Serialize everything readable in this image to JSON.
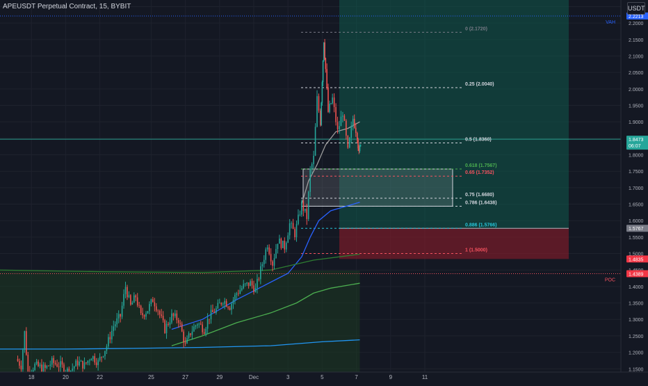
{
  "symbol_title": "APEUSDT Perpetual Contract, 15, BYBIT",
  "currency_button": "USDT",
  "chart_data": {
    "type": "candlestick",
    "ylim": [
      1.14,
      2.27
    ],
    "y_ticks": [
      "2.2500",
      "2.2000",
      "2.1500",
      "2.1000",
      "2.0500",
      "2.0000",
      "1.9500",
      "1.9000",
      "1.8500",
      "1.8000",
      "1.7500",
      "1.7000",
      "1.6500",
      "1.6000",
      "1.5500",
      "1.5000",
      "1.4500",
      "1.4000",
      "1.3500",
      "1.3000",
      "1.2500",
      "1.2000",
      "1.1500"
    ],
    "x_ticks": [
      {
        "label": "18",
        "day": -8
      },
      {
        "label": "20",
        "day": -6
      },
      {
        "label": "22",
        "day": -4
      },
      {
        "label": "25",
        "day": -1
      },
      {
        "label": "27",
        "day": 1
      },
      {
        "label": "29",
        "day": 3
      },
      {
        "label": "Dec",
        "day": 5
      },
      {
        "label": "3",
        "day": 7
      },
      {
        "label": "5",
        "day": 9
      },
      {
        "label": "7",
        "day": 11
      },
      {
        "label": "9",
        "day": 13
      },
      {
        "label": "11",
        "day": 15
      }
    ],
    "price_path": [
      [
        -8.9,
        1.18
      ],
      [
        -8.6,
        1.16
      ],
      [
        -8.4,
        1.26
      ],
      [
        -8.2,
        1.14
      ],
      [
        -7.8,
        1.16
      ],
      [
        -7.2,
        1.15
      ],
      [
        -6.8,
        1.17
      ],
      [
        -6.3,
        1.16
      ],
      [
        -5.8,
        1.14
      ],
      [
        -5.3,
        1.17
      ],
      [
        -4.9,
        1.16
      ],
      [
        -4.5,
        1.19
      ],
      [
        -4.1,
        1.17
      ],
      [
        -3.6,
        1.22
      ],
      [
        -3.2,
        1.28
      ],
      [
        -2.8,
        1.31
      ],
      [
        -2.5,
        1.4
      ],
      [
        -2.2,
        1.34
      ],
      [
        -1.9,
        1.37
      ],
      [
        -1.6,
        1.31
      ],
      [
        -1.2,
        1.33
      ],
      [
        -0.9,
        1.36
      ],
      [
        -0.6,
        1.33
      ],
      [
        -0.2,
        1.27
      ],
      [
        0.2,
        1.31
      ],
      [
        0.6,
        1.3
      ],
      [
        1.0,
        1.22
      ],
      [
        1.3,
        1.26
      ],
      [
        1.7,
        1.29
      ],
      [
        2.1,
        1.27
      ],
      [
        2.4,
        1.31
      ],
      [
        2.8,
        1.33
      ],
      [
        3.2,
        1.36
      ],
      [
        3.6,
        1.34
      ],
      [
        4.0,
        1.38
      ],
      [
        4.4,
        1.4
      ],
      [
        4.8,
        1.41
      ],
      [
        5.1,
        1.39
      ],
      [
        5.5,
        1.47
      ],
      [
        5.8,
        1.53
      ],
      [
        6.1,
        1.47
      ],
      [
        6.4,
        1.54
      ],
      [
        6.8,
        1.52
      ],
      [
        7.1,
        1.59
      ],
      [
        7.4,
        1.56
      ],
      [
        7.8,
        1.65
      ],
      [
        8.1,
        1.61
      ],
      [
        8.3,
        1.75
      ],
      [
        8.5,
        1.79
      ],
      [
        8.7,
        1.97
      ],
      [
        8.9,
        1.9
      ],
      [
        9.0,
        2.03
      ],
      [
        9.1,
        2.15
      ],
      [
        9.2,
        2.06
      ],
      [
        9.35,
        1.93
      ],
      [
        9.6,
        1.97
      ],
      [
        9.9,
        1.87
      ],
      [
        10.2,
        1.93
      ],
      [
        10.5,
        1.81
      ],
      [
        10.8,
        1.91
      ],
      [
        11.05,
        1.86
      ],
      [
        11.15,
        1.8
      ],
      [
        11.25,
        1.84
      ]
    ],
    "series": [
      {
        "name": "",
        "color": "#2196f3",
        "values": [
          [
            -10,
            1.21
          ],
          [
            -6,
            1.21
          ],
          [
            -2,
            1.212
          ],
          [
            2,
            1.215
          ],
          [
            6,
            1.22
          ],
          [
            9,
            1.232
          ],
          [
            11.2,
            1.238
          ]
        ]
      },
      {
        "name": "",
        "color": "#2962ff",
        "values": [
          [
            0.2,
            1.27
          ],
          [
            2,
            1.3
          ],
          [
            4,
            1.36
          ],
          [
            5.5,
            1.4
          ],
          [
            7,
            1.44
          ],
          [
            7.8,
            1.49
          ],
          [
            8.3,
            1.55
          ],
          [
            8.8,
            1.6
          ],
          [
            9.5,
            1.63
          ],
          [
            10.5,
            1.645
          ],
          [
            11.2,
            1.656
          ]
        ]
      },
      {
        "name": "",
        "color": "#4caf50",
        "values": [
          [
            0.2,
            1.22
          ],
          [
            2,
            1.25
          ],
          [
            4,
            1.29
          ],
          [
            6,
            1.32
          ],
          [
            7.5,
            1.35
          ],
          [
            8.5,
            1.38
          ],
          [
            9.5,
            1.395
          ],
          [
            11.2,
            1.41
          ]
        ]
      },
      {
        "name": "",
        "color": "#2e7d32",
        "values": [
          [
            -10,
            1.45
          ],
          [
            -4,
            1.445
          ],
          [
            2,
            1.442
          ],
          [
            6,
            1.45
          ],
          [
            8.5,
            1.48
          ],
          [
            11.2,
            1.498
          ]
        ]
      },
      {
        "name": "",
        "color": "#9e9e9e",
        "values": [
          [
            7.8,
            1.65
          ],
          [
            8.2,
            1.72
          ],
          [
            8.7,
            1.77
          ],
          [
            9.2,
            1.83
          ],
          [
            9.8,
            1.87
          ],
          [
            10.5,
            1.88
          ],
          [
            11.2,
            1.9
          ]
        ]
      }
    ],
    "fib_levels": [
      {
        "ratio": "0",
        "price": 2.172,
        "label": "0 (2.1720)",
        "color": "#787b86"
      },
      {
        "ratio": "0.25",
        "price": 2.004,
        "label": "0.25 (2.0040)",
        "color": "#d1d4dc"
      },
      {
        "ratio": "0.5",
        "price": 1.836,
        "label": "0.5 (1.8360)",
        "color": "#d1d4dc"
      },
      {
        "ratio": "0.618",
        "price": 1.7567,
        "label": "0.618 (1.7567)",
        "color": "#4caf50"
      },
      {
        "ratio": "0.65",
        "price": 1.7352,
        "label": "0.65 (1.7352)",
        "color": "#f7525f"
      },
      {
        "ratio": "0.75",
        "price": 1.668,
        "label": "0.75 (1.6680)",
        "color": "#d1d4dc"
      },
      {
        "ratio": "0.786",
        "price": 1.6438,
        "label": "0.786 (1.6438)",
        "color": "#d1d4dc"
      },
      {
        "ratio": "0.886",
        "price": 1.5766,
        "label": "0.886 (1.5766)",
        "color": "#26c6da"
      },
      {
        "ratio": "1",
        "price": 1.5,
        "label": "1 (1.5000)",
        "color": "#f7525f"
      }
    ],
    "position_zone": {
      "entry": 1.5767,
      "target": 2.27,
      "stop": 1.4835,
      "from_day": 10.0
    },
    "volume_profile_zone": {
      "top": 1.4485,
      "from_day": -10,
      "to_day": 11.2
    },
    "rect_zone": {
      "top": 1.7567,
      "bottom": 1.6438
    },
    "horizontal_lines": [
      {
        "name": "VAH",
        "price": 2.2213,
        "label": "VAH",
        "color": "#2962ff"
      },
      {
        "name": "POC",
        "price": 1.4389,
        "label": "POC",
        "color": "#f7525f"
      },
      {
        "name": "last",
        "price": 1.8473,
        "color": "#2a9d8f"
      }
    ],
    "price_labels": [
      {
        "text": "2.2213",
        "price": 2.2213,
        "bg": "#2962ff",
        "fg": "#ffffff"
      },
      {
        "text": "1.8473",
        "price": 1.8473,
        "bg": "#26a69a",
        "fg": "#ffffff",
        "sub": "06:07"
      },
      {
        "text": "1.5767",
        "price": 1.5767,
        "bg": "#787b86",
        "fg": "#ffffff"
      },
      {
        "text": "1.4835",
        "price": 1.4835,
        "bg": "#f23645",
        "fg": "#ffffff"
      },
      {
        "text": "1.4389",
        "price": 1.4389,
        "bg": "#f23645",
        "fg": "#ffffff"
      }
    ]
  }
}
